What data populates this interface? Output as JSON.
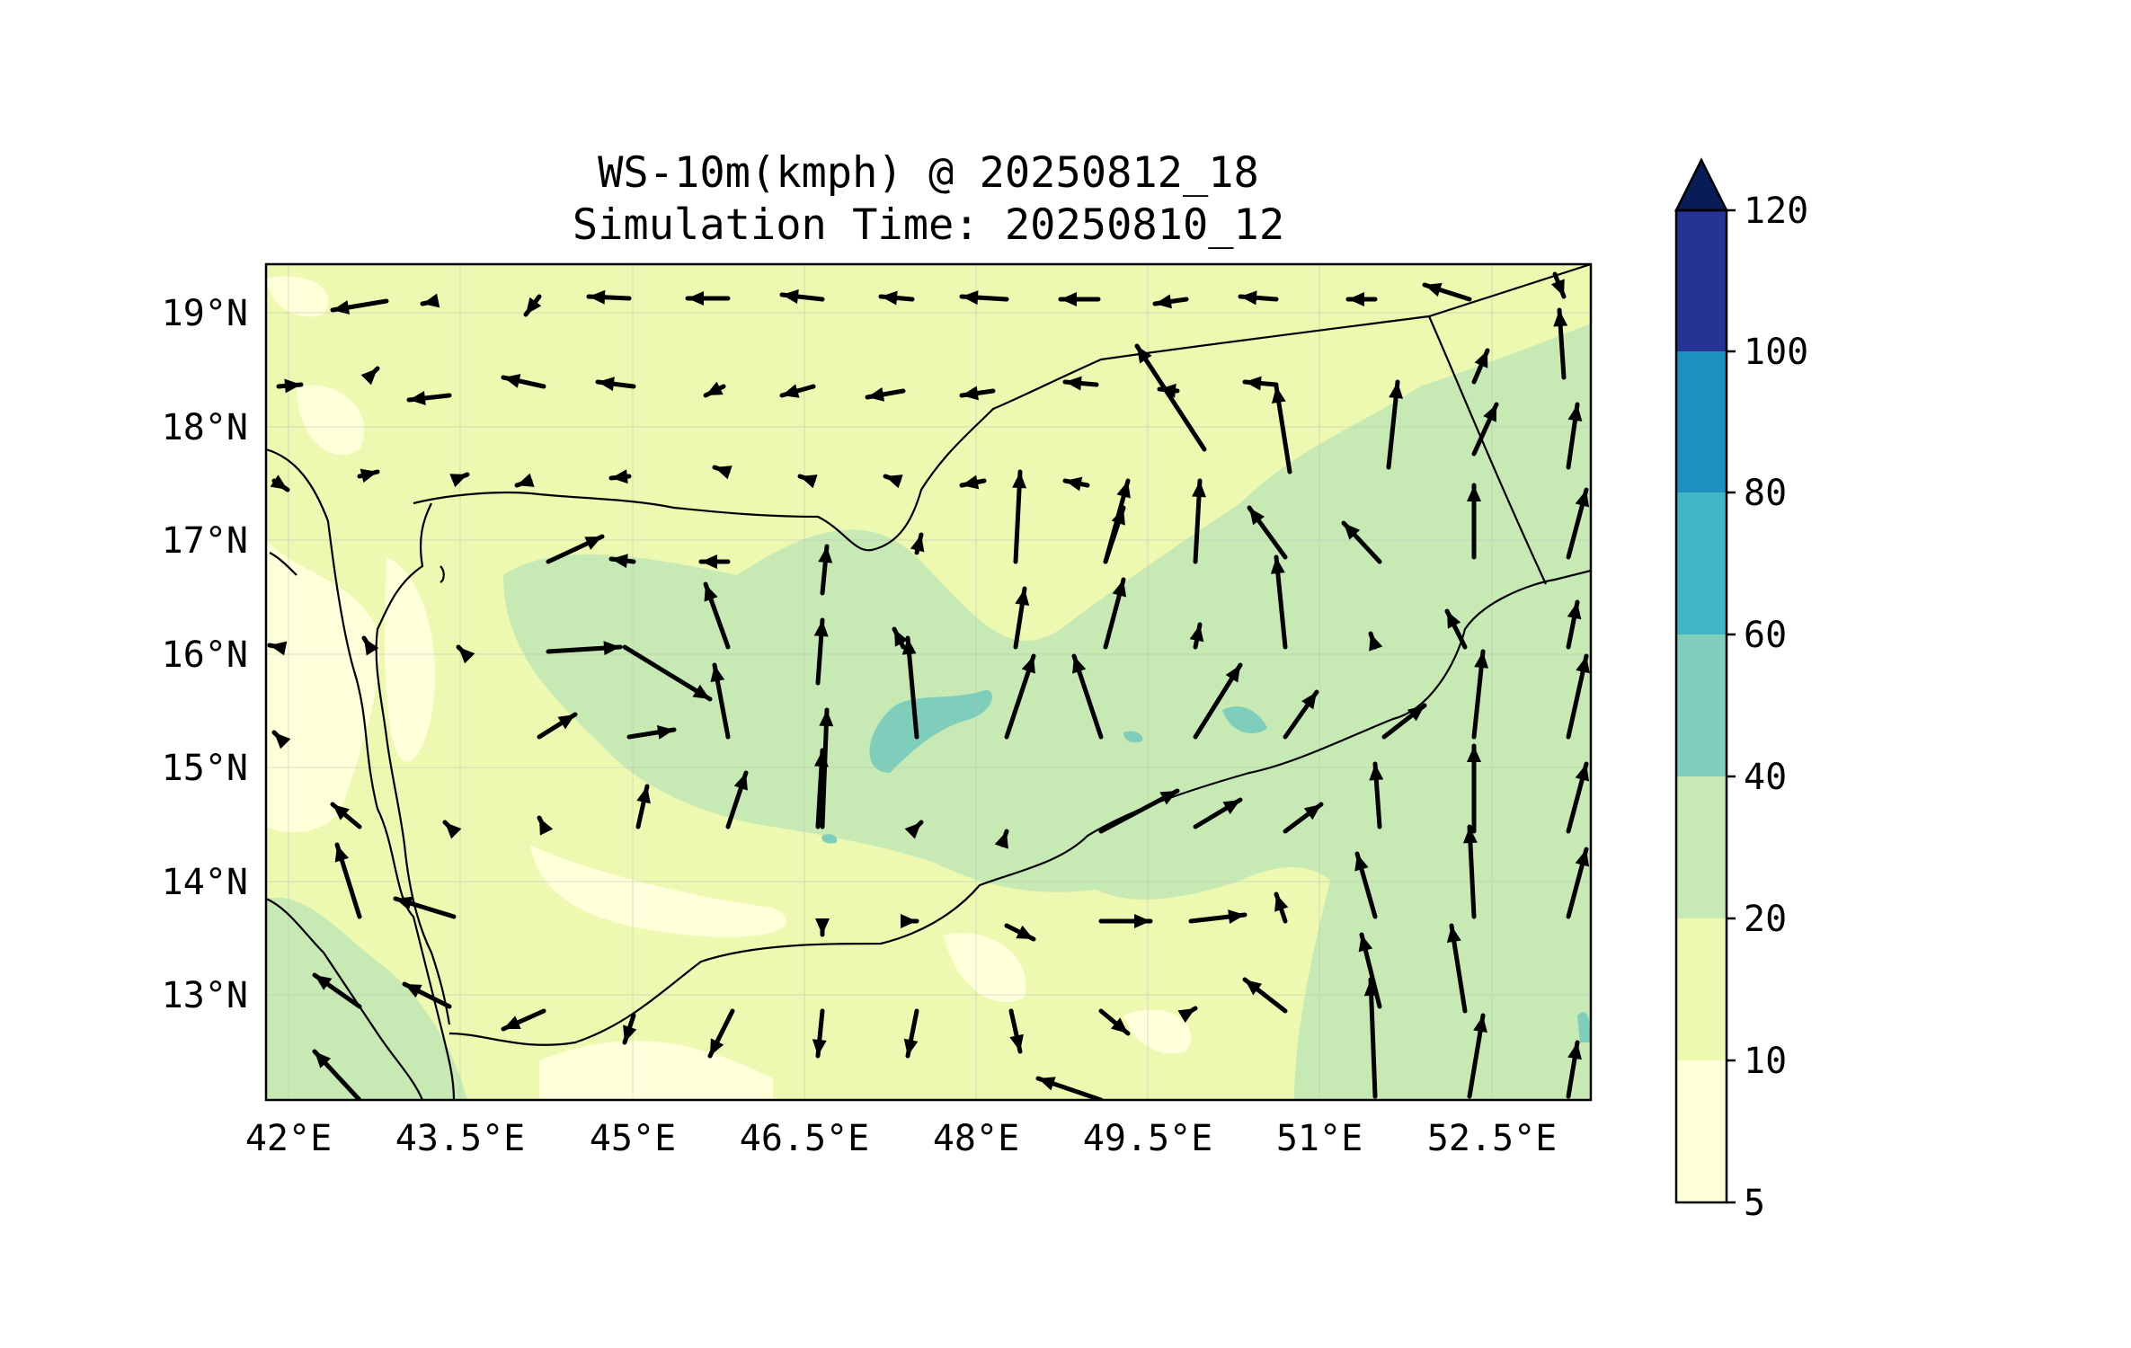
{
  "title": {
    "line1": "WS-10m(kmph) @ 20250812_18",
    "line2": "Simulation Time: 20250810_12"
  },
  "map": {
    "lon_range": [
      41.85,
      53.8
    ],
    "lat_range": [
      12.1,
      19.45
    ],
    "lon_ticks": [
      "42°E",
      "43.5°E",
      "45°E",
      "46.5°E",
      "48°E",
      "49.5°E",
      "51°E",
      "52.5°E"
    ],
    "lat_ticks": [
      "19°N",
      "18°N",
      "17°N",
      "16°N",
      "15°N",
      "14°N",
      "13°N"
    ],
    "grid": true
  },
  "colorbar": {
    "levels": [
      "5",
      "10",
      "20",
      "40",
      "60",
      "80",
      "100",
      "120"
    ],
    "colors": [
      "#ffffd9",
      "#edf8b1",
      "#c7e9b4",
      "#7fcdbb",
      "#41b6c4",
      "#1d91c0",
      "#253494",
      "#081d58"
    ],
    "extend": "max"
  },
  "chart_data": {
    "type": "heatmap",
    "variable": "WS-10m(kmph)",
    "units": "kmph",
    "valid_time": "20250812_18",
    "simulation_time": "20250810_12",
    "dominant_range": [
      10,
      40
    ],
    "max_patch_range": [
      40,
      60
    ],
    "vector_field": "wind arrows: westward flow north of 17°N, northward flow over central and eastern areas south of 17°N"
  }
}
